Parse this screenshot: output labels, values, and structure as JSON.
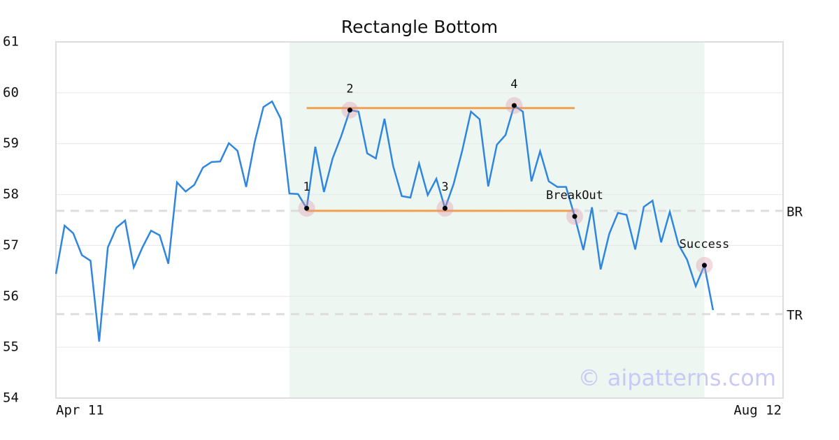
{
  "chart_data": {
    "type": "line",
    "title": "Rectangle Bottom",
    "categories": [
      "Apr 11",
      null,
      null,
      null,
      null,
      null,
      null,
      null,
      null,
      null,
      null,
      null,
      null,
      null,
      null,
      null,
      null,
      null,
      null,
      null,
      null,
      null,
      null,
      null,
      null,
      null,
      null,
      null,
      null,
      null,
      null,
      null,
      null,
      null,
      null,
      null,
      null,
      null,
      null,
      null,
      null,
      null,
      null,
      null,
      null,
      null,
      null,
      null,
      null,
      null,
      null,
      null,
      null,
      null,
      null,
      null,
      null,
      null,
      null,
      null,
      null,
      null,
      null,
      null,
      null,
      null,
      null,
      null,
      null,
      null,
      null,
      null,
      null,
      null,
      null,
      null,
      "Aug 12"
    ],
    "series": [
      {
        "color": "#2e86de",
        "values": [
          56.44,
          57.39,
          57.24,
          56.81,
          56.7,
          55.11,
          56.96,
          57.35,
          57.49,
          56.57,
          56.96,
          57.29,
          57.2,
          56.64,
          58.24,
          58.06,
          58.19,
          58.53,
          58.64,
          58.65,
          59.01,
          58.86,
          58.15,
          59.04,
          59.72,
          59.83,
          59.49,
          58.02,
          58.01,
          57.73,
          58.94,
          58.05,
          58.71,
          59.15,
          59.66,
          59.63,
          58.81,
          58.71,
          59.49,
          58.56,
          57.97,
          57.94,
          58.61,
          57.99,
          58.31,
          57.73,
          58.21,
          58.87,
          59.63,
          59.48,
          58.16,
          58.98,
          59.17,
          59.75,
          59.63,
          58.26,
          58.85,
          58.26,
          58.15,
          58.15,
          57.57,
          56.91,
          57.75,
          56.53,
          57.23,
          57.64,
          57.6,
          56.92,
          57.76,
          57.88,
          57.06,
          57.66,
          57.02,
          56.72,
          56.2,
          56.61,
          55.73
        ]
      }
    ],
    "annotations": [
      {
        "label": "1",
        "index": 29,
        "value": 57.73
      },
      {
        "label": "2",
        "index": 34,
        "value": 59.66
      },
      {
        "label": "3",
        "index": 45,
        "value": 57.73
      },
      {
        "label": "4",
        "index": 53,
        "value": 59.75
      },
      {
        "label": "BreakOut",
        "index": 60,
        "value": 57.57
      },
      {
        "label": "Success",
        "index": 75,
        "value": 56.61
      }
    ],
    "levels": [
      {
        "value": 59.7,
        "from": 29,
        "to": 60,
        "color": "#f0a050"
      },
      {
        "value": 57.68,
        "from": 29,
        "to": 60,
        "color": "#f0a050"
      }
    ],
    "reference_lines": [
      {
        "value": 57.68,
        "label": "BR"
      },
      {
        "value": 55.65,
        "label": "TR"
      }
    ],
    "watermark": "© aipatterns.com",
    "ylim": [
      54,
      61
    ],
    "yticks": [
      54,
      55,
      56,
      57,
      58,
      59,
      60,
      61
    ],
    "grid": true
  }
}
